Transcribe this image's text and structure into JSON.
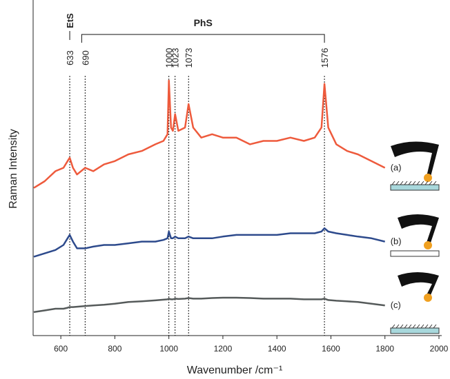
{
  "chart_data": {
    "type": "line",
    "x_label": "Wavenumber /cm⁻¹",
    "y_label": "Raman Intensity",
    "xlim": [
      500,
      2000
    ],
    "xticks": [
      600,
      800,
      1000,
      1200,
      1400,
      1600,
      1800,
      2000
    ],
    "ylim": [
      0,
      100
    ],
    "x": [
      500,
      540,
      580,
      610,
      625,
      633,
      645,
      660,
      690,
      720,
      760,
      800,
      850,
      900,
      950,
      980,
      995,
      1000,
      1008,
      1015,
      1023,
      1035,
      1060,
      1073,
      1090,
      1120,
      1160,
      1200,
      1250,
      1300,
      1350,
      1400,
      1450,
      1500,
      1540,
      1565,
      1576,
      1590,
      1620,
      1660,
      1700,
      1750,
      1800
    ],
    "series": [
      {
        "name": "(a)",
        "color": "#ee5a3c",
        "values": [
          44,
          46,
          49,
          50,
          52,
          53,
          50,
          48,
          50,
          49,
          51,
          52,
          54,
          55,
          57,
          58,
          60,
          76,
          62,
          61,
          66,
          61,
          62,
          69,
          62,
          59,
          60,
          59,
          59,
          57,
          58,
          58,
          59,
          58,
          59,
          62,
          75,
          62,
          57,
          55,
          54,
          52,
          50
        ]
      },
      {
        "name": "(b)",
        "color": "#2d4a8c",
        "values": [
          23.5,
          24.5,
          25.5,
          27,
          29,
          30,
          28,
          26,
          26,
          26.5,
          27,
          27,
          27.5,
          28,
          28,
          28.5,
          29,
          31,
          29,
          29,
          29.5,
          29,
          29,
          29.5,
          29,
          29,
          29,
          29.5,
          30,
          30,
          30,
          30,
          30.5,
          30.5,
          30.5,
          31,
          32,
          31,
          30.5,
          30,
          29.5,
          29,
          28
        ]
      },
      {
        "name": "(c)",
        "color": "#555a5a",
        "values": [
          7,
          7.5,
          8,
          8,
          8.3,
          8.5,
          8.5,
          8.6,
          8.8,
          9,
          9.2,
          9.5,
          10,
          10.2,
          10.5,
          10.7,
          10.8,
          11,
          10.8,
          10.8,
          11,
          10.9,
          11,
          11.2,
          11,
          11,
          11.2,
          11.3,
          11.3,
          11.2,
          11,
          11,
          11,
          10.8,
          10.8,
          10.8,
          11,
          10.6,
          10.4,
          10.2,
          10,
          9.5,
          9
        ]
      }
    ],
    "peak_markers": [
      633,
      690,
      1000,
      1023,
      1073,
      1576
    ],
    "group_labels": [
      "EtS",
      "PhS"
    ]
  }
}
